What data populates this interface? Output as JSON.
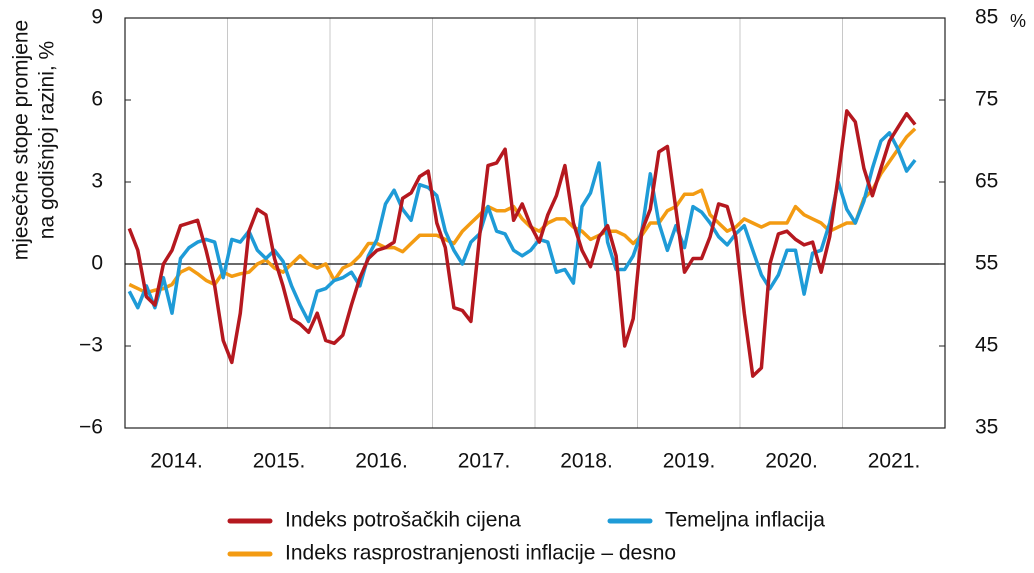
{
  "chart_data": {
    "type": "line",
    "ylabel": [
      "mjesečne stope promjene",
      "na godišnjoj razini, %"
    ],
    "y2label": "%",
    "categories": [
      null,
      null,
      null,
      null,
      null,
      null,
      "2014.",
      null,
      null,
      null,
      null,
      null,
      null,
      null,
      null,
      null,
      null,
      null,
      "2015.",
      null,
      null,
      null,
      null,
      null,
      null,
      null,
      null,
      null,
      null,
      null,
      "2016.",
      null,
      null,
      null,
      null,
      null,
      null,
      null,
      null,
      null,
      null,
      null,
      "2017.",
      null,
      null,
      null,
      null,
      null,
      null,
      null,
      null,
      null,
      null,
      null,
      "2018.",
      null,
      null,
      null,
      null,
      null,
      null,
      null,
      null,
      null,
      null,
      null,
      "2019.",
      null,
      null,
      null,
      null,
      null,
      null,
      null,
      null,
      null,
      null,
      null,
      "2020.",
      null,
      null,
      null,
      null,
      null,
      null,
      null,
      null,
      null,
      null,
      null,
      "2021.",
      null,
      null
    ],
    "series": [
      {
        "name": "Indeks potrošačkih cijena",
        "color": "#b5181f",
        "values": [
          1.3,
          0.5,
          -1.2,
          -1.5,
          0,
          0.5,
          1.4,
          1.5,
          1.6,
          0.5,
          -0.8,
          -2.8,
          -3.6,
          -1.8,
          1.2,
          2.0,
          1.8,
          0.2,
          -0.8,
          -2.0,
          -2.2,
          -2.5,
          -1.8,
          -2.8,
          -2.9,
          -2.6,
          -1.5,
          -0.5,
          0.2,
          0.5,
          0.6,
          0.8,
          2.4,
          2.6,
          3.2,
          3.4,
          1.5,
          0.6,
          -1.6,
          -1.7,
          -2.1,
          1.0,
          3.6,
          3.7,
          4.2,
          1.6,
          2.2,
          1.4,
          0.8,
          1.8,
          2.5,
          3.6,
          1.5,
          0.5,
          -0.1,
          1.0,
          1.4,
          0.3,
          -3.0,
          -2.0,
          1.2,
          2.0,
          4.1,
          4.3,
          2.0,
          -0.3,
          0.2,
          0.2,
          1.0,
          2.2,
          2.1,
          1.0,
          -1.8,
          -4.1,
          -3.8,
          0.0,
          1.1,
          1.2,
          0.9,
          0.7,
          0.8,
          -0.3,
          1.0,
          3.2,
          5.6,
          5.2,
          3.5,
          2.5,
          3.5,
          4.5,
          5.0,
          5.5,
          5.1
        ]
      },
      {
        "name": "Temeljna inflacija",
        "color": "#1e9bd7",
        "values": [
          -1.0,
          -1.6,
          -0.8,
          -1.6,
          -0.5,
          -1.8,
          0.2,
          0.6,
          0.8,
          0.9,
          0.8,
          -0.5,
          0.9,
          0.8,
          1.2,
          0.5,
          0.2,
          0.5,
          0.1,
          -0.8,
          -1.5,
          -2.1,
          -1.0,
          -0.9,
          -0.6,
          -0.5,
          -0.3,
          -0.8,
          0.3,
          0.9,
          2.2,
          2.7,
          2.0,
          1.6,
          2.9,
          2.8,
          2.5,
          1.2,
          0.5,
          0.0,
          0.8,
          1.1,
          2.1,
          1.2,
          1.1,
          0.5,
          0.3,
          0.5,
          0.9,
          0.8,
          -0.3,
          -0.2,
          -0.7,
          2.1,
          2.6,
          3.7,
          0.8,
          -0.2,
          -0.2,
          0.3,
          1.2,
          3.3,
          1.5,
          0.5,
          1.4,
          0.6,
          2.1,
          1.9,
          1.5,
          1.0,
          0.7,
          1.1,
          1.4,
          0.5,
          -0.4,
          -0.9,
          -0.4,
          0.5,
          0.5,
          -1.1,
          0.4,
          0.5,
          1.5,
          3.0,
          2.0,
          1.5,
          2.3,
          3.5,
          4.5,
          4.8,
          4.2,
          3.4,
          3.8
        ]
      },
      {
        "name": "Indeks rasprostranjenosti inflacije – desno",
        "color": "#f39b12",
        "axis": "y2",
        "values": [
          52.5,
          52,
          51.5,
          51.8,
          52,
          52.5,
          54,
          54.5,
          53.8,
          53,
          52.5,
          54,
          53.5,
          53.8,
          54,
          55,
          55.5,
          54.5,
          54,
          55,
          56,
          55,
          54.5,
          55,
          53,
          54.5,
          55,
          56,
          57.5,
          57.5,
          57,
          57,
          56.5,
          57.5,
          58.5,
          58.5,
          58.5,
          58,
          57.5,
          59,
          60,
          61,
          62,
          61.5,
          61.5,
          62,
          60.5,
          59.5,
          59,
          60,
          60.5,
          60.5,
          59.5,
          59,
          58,
          58.5,
          59,
          59,
          58.5,
          57.5,
          58.5,
          60,
          60,
          61.5,
          62,
          63.5,
          63.5,
          64,
          61,
          60,
          59,
          59.5,
          60.5,
          60,
          59.5,
          60,
          60,
          60,
          62,
          61,
          60.5,
          60,
          59,
          59.5,
          60,
          60,
          63,
          64,
          66,
          67.5,
          69,
          70.5,
          71.5
        ]
      }
    ],
    "ylim": [
      -6,
      9
    ],
    "yticks": [
      {
        "value": -6,
        "label": "−6"
      },
      {
        "value": -3,
        "label": "−3"
      },
      0,
      3,
      6,
      9
    ],
    "y2lim": [
      35,
      85
    ],
    "y2ticks": [
      35,
      45,
      55,
      65,
      75,
      85
    ],
    "grid": "x"
  }
}
